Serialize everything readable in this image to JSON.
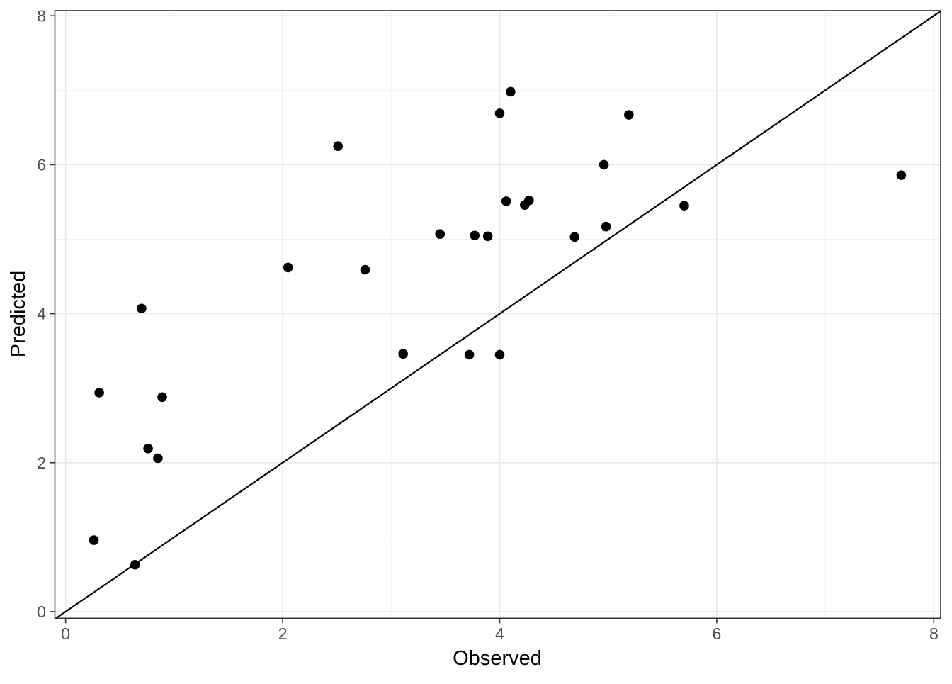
{
  "figure": {
    "xlabel": "Observed",
    "ylabel": "Predicted"
  },
  "chart_data": {
    "type": "scatter",
    "title": "",
    "xlabel": "Observed",
    "ylabel": "Predicted",
    "x_ticks": [
      0,
      2,
      4,
      6,
      8
    ],
    "y_ticks": [
      0,
      2,
      4,
      6,
      8
    ],
    "x_minor_ticks": [
      1,
      3,
      5,
      7
    ],
    "y_minor_ticks": [
      1,
      3,
      5,
      7
    ],
    "xlim": [
      -0.099,
      8.063
    ],
    "ylim": [
      -0.089,
      8.069
    ],
    "grid": true,
    "legend": false,
    "identity_line": {
      "slope": 1,
      "intercept": 0
    },
    "points": [
      [
        4.1,
        6.98
      ],
      [
        4.0,
        6.69
      ],
      [
        5.19,
        6.67
      ],
      [
        2.51,
        6.25
      ],
      [
        4.96,
        6.0
      ],
      [
        7.7,
        5.86
      ],
      [
        4.06,
        5.51
      ],
      [
        4.27,
        5.52
      ],
      [
        4.23,
        5.46
      ],
      [
        5.7,
        5.45
      ],
      [
        4.98,
        5.17
      ],
      [
        3.45,
        5.07
      ],
      [
        3.77,
        5.05
      ],
      [
        3.89,
        5.04
      ],
      [
        4.69,
        5.03
      ],
      [
        2.05,
        4.62
      ],
      [
        2.76,
        4.59
      ],
      [
        0.7,
        4.07
      ],
      [
        3.11,
        3.46
      ],
      [
        3.72,
        3.45
      ],
      [
        4.0,
        3.45
      ],
      [
        0.31,
        2.94
      ],
      [
        0.89,
        2.88
      ],
      [
        0.76,
        2.19
      ],
      [
        0.85,
        2.06
      ],
      [
        0.26,
        0.96
      ],
      [
        0.64,
        0.63
      ]
    ]
  },
  "style": {
    "background": "#FFFFFF",
    "panel_background": "#FFFFFF",
    "panel_border_color": "#343434",
    "grid_major_color": "#E8E8E8",
    "grid_minor_color": "#F2F2F2",
    "point_color": "#000000",
    "line_color": "#000000",
    "tick_mark_color": "#333333",
    "tick_label_color": "#4D4D4D",
    "axis_title_color": "#000000"
  }
}
